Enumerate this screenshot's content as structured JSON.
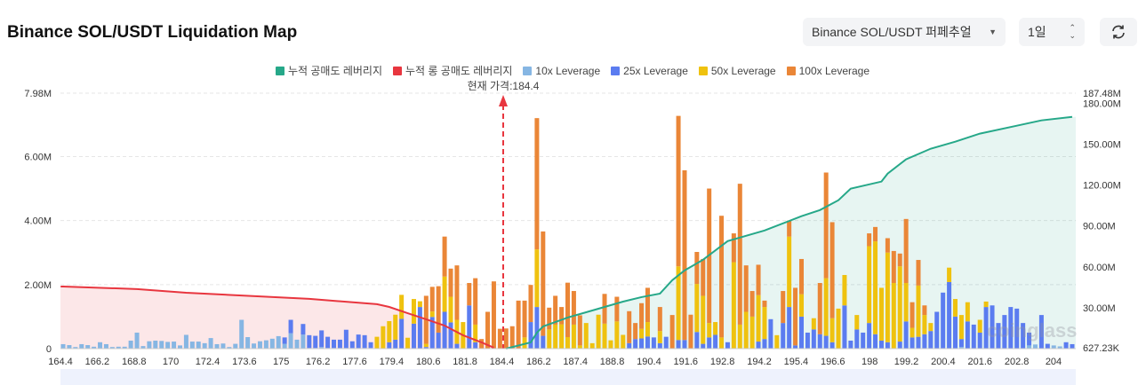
{
  "header": {
    "title": "Binance SOL/USDT Liquidation Map",
    "market_select": "Binance SOL/USDT 퍼페추얼",
    "range_select": "1일",
    "refresh_icon": "refresh-icon"
  },
  "legend": [
    {
      "label": "누적 공매도 레버리지",
      "color": "#26a889"
    },
    {
      "label": "누적 롱 공매도 레버리지",
      "color": "#e8363f"
    },
    {
      "label": "10x Leverage",
      "color": "#86b6e3"
    },
    {
      "label": "25x Leverage",
      "color": "#5b7cf0"
    },
    {
      "label": "50x Leverage",
      "color": "#efc20f"
    },
    {
      "label": "100x Leverage",
      "color": "#ea8637"
    }
  ],
  "current_price_label": "현재 가격:184.4",
  "watermark": "coinglass",
  "chart_data": {
    "type": "bar",
    "stacked": true,
    "title": "Binance SOL/USDT Liquidation Map",
    "current_price": 184.4,
    "current_price_index": 71.5,
    "x_tick_labels": [
      "164.4",
      "166.2",
      "168.8",
      "170",
      "172.4",
      "173.6",
      "175",
      "176.2",
      "177.6",
      "179.4",
      "180.6",
      "181.8",
      "184.4",
      "186.2",
      "187.4",
      "188.8",
      "190.4",
      "191.6",
      "192.8",
      "194.2",
      "195.4",
      "196.6",
      "198",
      "199.2",
      "200.4",
      "201.6",
      "202.8",
      "204"
    ],
    "y_left": {
      "ticks": [
        "0",
        "2.00M",
        "4.00M",
        "6.00M",
        "7.98M"
      ],
      "tick_values": [
        0,
        2,
        4,
        6,
        7.98
      ],
      "range": [
        0,
        7.98
      ],
      "unit": "M"
    },
    "y_right": {
      "ticks": [
        "627.23K",
        "30.00M",
        "60.00M",
        "90.00M",
        "120.00M",
        "150.00M",
        "180.00M",
        "187.48M"
      ],
      "tick_values": [
        0.627,
        30,
        60,
        90,
        120,
        150,
        180,
        187.48
      ],
      "range": [
        0,
        187.48
      ],
      "unit": "M"
    },
    "series_order": [
      "10x Leverage",
      "25x Leverage",
      "50x Leverage",
      "100x Leverage"
    ],
    "bars": [
      [
        0.14,
        0,
        0,
        0
      ],
      [
        0.11,
        0,
        0,
        0
      ],
      [
        0.05,
        0,
        0,
        0
      ],
      [
        0.14,
        0,
        0,
        0
      ],
      [
        0.11,
        0,
        0,
        0
      ],
      [
        0.06,
        0,
        0,
        0
      ],
      [
        0.2,
        0,
        0,
        0
      ],
      [
        0.14,
        0,
        0,
        0
      ],
      [
        0.05,
        0,
        0,
        0
      ],
      [
        0.06,
        0,
        0,
        0
      ],
      [
        0.06,
        0,
        0,
        0
      ],
      [
        0.25,
        0,
        0,
        0
      ],
      [
        0.5,
        0,
        0,
        0
      ],
      [
        0.08,
        0,
        0,
        0
      ],
      [
        0.23,
        0,
        0,
        0
      ],
      [
        0.25,
        0,
        0,
        0
      ],
      [
        0.24,
        0,
        0,
        0
      ],
      [
        0.21,
        0,
        0,
        0
      ],
      [
        0.22,
        0,
        0,
        0
      ],
      [
        0.1,
        0,
        0,
        0
      ],
      [
        0.43,
        0,
        0,
        0
      ],
      [
        0.22,
        0,
        0,
        0
      ],
      [
        0.22,
        0,
        0,
        0
      ],
      [
        0.17,
        0,
        0,
        0
      ],
      [
        0.33,
        0,
        0,
        0
      ],
      [
        0.14,
        0,
        0,
        0
      ],
      [
        0.16,
        0,
        0,
        0
      ],
      [
        0.05,
        0,
        0,
        0
      ],
      [
        0.15,
        0,
        0,
        0
      ],
      [
        0.9,
        0,
        0,
        0
      ],
      [
        0.36,
        0,
        0,
        0
      ],
      [
        0.16,
        0,
        0,
        0
      ],
      [
        0.23,
        0,
        0,
        0
      ],
      [
        0.26,
        0,
        0,
        0
      ],
      [
        0.31,
        0,
        0,
        0
      ],
      [
        0.39,
        0,
        0,
        0
      ],
      [
        0.15,
        0.2,
        0,
        0
      ],
      [
        0.48,
        0.42,
        0,
        0
      ],
      [
        0.28,
        0,
        0,
        0
      ],
      [
        0.44,
        0.33,
        0,
        0
      ],
      [
        0.02,
        0.4,
        0,
        0
      ],
      [
        0.02,
        0.38,
        0,
        0
      ],
      [
        0.05,
        0.52,
        0,
        0
      ],
      [
        0.02,
        0.35,
        0,
        0
      ],
      [
        0.02,
        0.26,
        0,
        0
      ],
      [
        0.02,
        0.26,
        0,
        0
      ],
      [
        0.02,
        0.57,
        0,
        0
      ],
      [
        0.02,
        0.21,
        0,
        0
      ],
      [
        0.02,
        0.42,
        0,
        0
      ],
      [
        0.02,
        0.4,
        0,
        0
      ],
      [
        0.02,
        0.18,
        0,
        0
      ],
      [
        0,
        0,
        0.37,
        0
      ],
      [
        0,
        0,
        0.7,
        0
      ],
      [
        0,
        0.2,
        0.66,
        0
      ],
      [
        0,
        0.28,
        0.78,
        0
      ],
      [
        0,
        0.93,
        0.75,
        0
      ],
      [
        0,
        0,
        0.34,
        0
      ],
      [
        0,
        0.78,
        0.77,
        0
      ],
      [
        0,
        1.3,
        0.18,
        0
      ],
      [
        0,
        0.05,
        0.1,
        1.5
      ],
      [
        0,
        0.99,
        0.17,
        0.77
      ],
      [
        0,
        0.5,
        0,
        1.45
      ],
      [
        0,
        1.15,
        1.1,
        1.25
      ],
      [
        0,
        0.82,
        0.8,
        0.88
      ],
      [
        0,
        0.15,
        0.75,
        1.7
      ],
      [
        0,
        0,
        0.83,
        0
      ],
      [
        0,
        1.35,
        0,
        0.7
      ],
      [
        0,
        0.2,
        0.55,
        1.45
      ],
      [
        0,
        0,
        0,
        0.3
      ],
      [
        0,
        0,
        0,
        1.15
      ],
      [
        0,
        0,
        0,
        2.1
      ],
      [
        0,
        0,
        0,
        0.62
      ],
      [
        0,
        0,
        0,
        0.63
      ],
      [
        0,
        0,
        0,
        0.7
      ],
      [
        0,
        0,
        0,
        1.5
      ],
      [
        0,
        0,
        0.35,
        1.15
      ],
      [
        0,
        0.83,
        0,
        1.16
      ],
      [
        0,
        1.3,
        1.8,
        4.1
      ],
      [
        0,
        0.4,
        0,
        3.26
      ],
      [
        0,
        0,
        0.6,
        0.68
      ],
      [
        0,
        0,
        0.75,
        0.9
      ],
      [
        0,
        0,
        0.76,
        0.54
      ],
      [
        0,
        0,
        0.36,
        1.7
      ],
      [
        0,
        0,
        0.75,
        1.05
      ],
      [
        0,
        0,
        0.1,
        0.94
      ],
      [
        0,
        0,
        0.8,
        0
      ],
      [
        0,
        0,
        0.17,
        0
      ],
      [
        0,
        0,
        1.06,
        0
      ],
      [
        0,
        0,
        0.78,
        0.93
      ],
      [
        0,
        0,
        0.26,
        0
      ],
      [
        0,
        0,
        0.85,
        0.77
      ],
      [
        0,
        0,
        0.43,
        0
      ],
      [
        0,
        0.17,
        0,
        1.0
      ],
      [
        0,
        0.3,
        0,
        0.5
      ],
      [
        0,
        0.32,
        0.3,
        0.8
      ],
      [
        0,
        0.38,
        0.45,
        1.07
      ],
      [
        0,
        0.35,
        0,
        0
      ],
      [
        0,
        0.17,
        0.38,
        0.75
      ],
      [
        0,
        0.37,
        0,
        0
      ],
      [
        0,
        0,
        0,
        1.05
      ],
      [
        0,
        0.27,
        2.3,
        4.7
      ],
      [
        0,
        0.27,
        0,
        5.3
      ],
      [
        0,
        0,
        0,
        1.06
      ],
      [
        0,
        0.52,
        1.5,
        1.0
      ],
      [
        0,
        0.15,
        1.5,
        1.15
      ],
      [
        0,
        0.35,
        0.45,
        4.2
      ],
      [
        0,
        0.43,
        0.4,
        0
      ],
      [
        0,
        0,
        0.35,
        3.8
      ],
      [
        0,
        0.2,
        0,
        0
      ],
      [
        0,
        0,
        2.7,
        0.9
      ],
      [
        0,
        0,
        0.75,
        4.4
      ],
      [
        0,
        0,
        1.15,
        1.45
      ],
      [
        0,
        0,
        1.0,
        0.8
      ],
      [
        0,
        0.22,
        1.45,
        0.95
      ],
      [
        0,
        0.3,
        1.0,
        0.2
      ],
      [
        0,
        0.92,
        0,
        0
      ],
      [
        0,
        0,
        0.42,
        0
      ],
      [
        0,
        0.8,
        0,
        1.0
      ],
      [
        0,
        1.3,
        2.2,
        0.5
      ],
      [
        0,
        0.1,
        0,
        1.8
      ],
      [
        0,
        1.0,
        0.7,
        1.1
      ],
      [
        0,
        0.5,
        0,
        0
      ],
      [
        0,
        0.6,
        0.35,
        0
      ],
      [
        0,
        0.45,
        0,
        1.6
      ],
      [
        0,
        0.4,
        1.8,
        3.3
      ],
      [
        0,
        0.2,
        0.75,
        3.0
      ],
      [
        0,
        0,
        1.25,
        0
      ],
      [
        0,
        1.35,
        0.95,
        0
      ],
      [
        0,
        0.25,
        0,
        0
      ],
      [
        0,
        0.6,
        0.45,
        0
      ],
      [
        0,
        0.5,
        0,
        0
      ],
      [
        0,
        0.8,
        2.4,
        0.4
      ],
      [
        0,
        0.45,
        2.9,
        0.45
      ],
      [
        0,
        0.25,
        1.65,
        0
      ],
      [
        0,
        0.2,
        2.8,
        0.45
      ],
      [
        0,
        0,
        2.05,
        1.0
      ],
      [
        0,
        0.22,
        2.35,
        0.4
      ],
      [
        0,
        0.85,
        1.2,
        2.0
      ],
      [
        0,
        0.35,
        0.3,
        0.8
      ],
      [
        0,
        0.37,
        1.6,
        0.8
      ],
      [
        0,
        0.45,
        0.6,
        0.3
      ],
      [
        0,
        0.55,
        0.25,
        0
      ],
      [
        0,
        1.15,
        0,
        0
      ],
      [
        0,
        1.75,
        0,
        0
      ],
      [
        0,
        2.08,
        0.45,
        0
      ],
      [
        0,
        1.0,
        0.55,
        0
      ],
      [
        0.05,
        0.25,
        0.75,
        0
      ],
      [
        0,
        0.85,
        0.6,
        0
      ],
      [
        0,
        0.75,
        0,
        0
      ],
      [
        0,
        0.5,
        0.4,
        0
      ],
      [
        0,
        1.3,
        0.17,
        0
      ],
      [
        0,
        1.35,
        0,
        0
      ],
      [
        0,
        0.8,
        0,
        0
      ],
      [
        0,
        1.05,
        0,
        0
      ],
      [
        0,
        1.3,
        0,
        0
      ],
      [
        0,
        1.25,
        0,
        0
      ],
      [
        0,
        0.8,
        0,
        0
      ],
      [
        0.1,
        0.4,
        0,
        0
      ],
      [
        0.13,
        0,
        0,
        0
      ],
      [
        0,
        1.05,
        0,
        0
      ],
      [
        0,
        0.15,
        0,
        0
      ],
      [
        0.1,
        0,
        0,
        0
      ],
      [
        0.07,
        0,
        0,
        0
      ],
      [
        0,
        0.2,
        0,
        0
      ],
      [
        0,
        0.14,
        0,
        0
      ]
    ],
    "cumulative_long": [
      [
        0,
        45.6
      ],
      [
        12,
        43.7
      ],
      [
        20,
        41
      ],
      [
        29,
        39
      ],
      [
        40,
        36.5
      ],
      [
        51,
        32.6
      ],
      [
        53,
        30.6
      ],
      [
        56,
        26
      ],
      [
        59,
        21.5
      ],
      [
        62,
        16.9
      ],
      [
        65,
        9.8
      ],
      [
        68,
        4.6
      ],
      [
        70,
        0.7
      ]
    ],
    "cumulative_short": [
      [
        72,
        0
      ],
      [
        76,
        4.6
      ],
      [
        77,
        11.7
      ],
      [
        78,
        16.3
      ],
      [
        82,
        22.8
      ],
      [
        85,
        26.7
      ],
      [
        91,
        34.5
      ],
      [
        94,
        37.8
      ],
      [
        97,
        40.4
      ],
      [
        99,
        50.2
      ],
      [
        101,
        57.4
      ],
      [
        104,
        65.2
      ],
      [
        108,
        78.9
      ],
      [
        114,
        86.7
      ],
      [
        120,
        97.2
      ],
      [
        123,
        101.7
      ],
      [
        126,
        108.9
      ],
      [
        128,
        117.4
      ],
      [
        133,
        122.6
      ],
      [
        134,
        128.4
      ],
      [
        137,
        138.9
      ],
      [
        141,
        146.7
      ],
      [
        145,
        151.9
      ],
      [
        149,
        157.8
      ],
      [
        155,
        163.6
      ],
      [
        159,
        167.5
      ],
      [
        164,
        170.1
      ]
    ]
  }
}
